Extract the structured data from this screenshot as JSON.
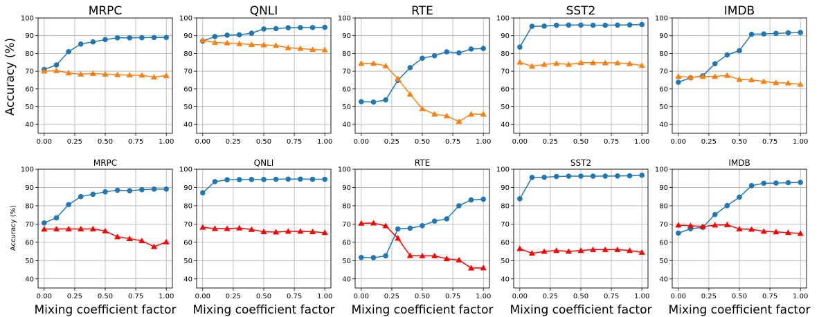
{
  "ylabel_top": "Accuracy (%)",
  "ylabel_bottom": "Accuracy (%)",
  "xlabel": "Mixing coefficient factor",
  "x_ticks": [
    "0.00",
    "0.25",
    "0.50",
    "0.75",
    "1.00"
  ],
  "y_ticks": [
    "40",
    "50",
    "60",
    "70",
    "80",
    "90",
    "100"
  ],
  "colors": {
    "blue": "#1f77b4",
    "orange": "#ff7f0e",
    "red": "#ff0000",
    "grid": "#b0b0b0"
  },
  "chart_data": [
    {
      "type": "line",
      "row": 0,
      "col": 0,
      "title": "MRPC",
      "xlim": [
        0,
        1
      ],
      "ylim": [
        35,
        100
      ],
      "grid": true,
      "x": [
        0,
        0.1,
        0.2,
        0.3,
        0.4,
        0.5,
        0.6,
        0.7,
        0.8,
        0.9,
        1.0
      ],
      "series": [
        {
          "color": "blue",
          "marker": "circle",
          "values": [
            71,
            73.5,
            81,
            85.3,
            86.5,
            87.8,
            88.8,
            88.8,
            88.9,
            89,
            89
          ]
        },
        {
          "color": "orange",
          "marker": "triangle",
          "values": [
            70,
            70.3,
            69,
            68.3,
            68.7,
            68.3,
            68,
            67.8,
            67.7,
            66.7,
            67.5
          ]
        }
      ]
    },
    {
      "type": "line",
      "row": 0,
      "col": 1,
      "title": "QNLI",
      "xlim": [
        0,
        1
      ],
      "ylim": [
        35,
        100
      ],
      "grid": true,
      "x": [
        0,
        0.1,
        0.2,
        0.3,
        0.4,
        0.5,
        0.6,
        0.7,
        0.8,
        0.9,
        1.0
      ],
      "series": [
        {
          "color": "blue",
          "marker": "circle",
          "values": [
            87,
            89.5,
            90.3,
            90.5,
            91.4,
            93.8,
            94,
            94.5,
            94.6,
            94.6,
            94.7
          ]
        },
        {
          "color": "orange",
          "marker": "triangle",
          "values": [
            87.5,
            86.2,
            85.9,
            85.5,
            85,
            84.8,
            84.5,
            83.2,
            82.8,
            82.2,
            82
          ]
        }
      ]
    },
    {
      "type": "line",
      "row": 0,
      "col": 2,
      "title": "RTE",
      "xlim": [
        0,
        1
      ],
      "ylim": [
        35,
        100
      ],
      "grid": true,
      "x": [
        0,
        0.1,
        0.2,
        0.3,
        0.4,
        0.5,
        0.6,
        0.7,
        0.8,
        0.9,
        1.0
      ],
      "series": [
        {
          "color": "blue",
          "marker": "circle",
          "values": [
            52.8,
            52.6,
            53.8,
            64.9,
            72,
            77.3,
            78.7,
            80.9,
            80.3,
            82.5,
            82.8
          ]
        },
        {
          "color": "orange",
          "marker": "triangle",
          "values": [
            74.4,
            74.4,
            73,
            65.7,
            57,
            48.8,
            45.8,
            44.8,
            41.6,
            45.8,
            45.8
          ]
        }
      ]
    },
    {
      "type": "line",
      "row": 0,
      "col": 3,
      "title": "SST2",
      "xlim": [
        0,
        1
      ],
      "ylim": [
        35,
        100
      ],
      "grid": true,
      "x": [
        0,
        0.1,
        0.2,
        0.3,
        0.4,
        0.5,
        0.6,
        0.7,
        0.8,
        0.9,
        1.0
      ],
      "series": [
        {
          "color": "blue",
          "marker": "circle",
          "values": [
            83.6,
            95.3,
            95.4,
            95.9,
            96,
            96,
            95.9,
            95.9,
            96,
            96.1,
            96.3
          ]
        },
        {
          "color": "orange",
          "marker": "triangle",
          "values": [
            75,
            72.8,
            73.8,
            74.4,
            73.8,
            74.8,
            74.8,
            74.7,
            74.7,
            74.2,
            73.2
          ]
        }
      ]
    },
    {
      "type": "line",
      "row": 0,
      "col": 4,
      "title": "IMDB",
      "xlim": [
        0,
        1
      ],
      "ylim": [
        35,
        100
      ],
      "grid": true,
      "x": [
        0,
        0.1,
        0.2,
        0.3,
        0.4,
        0.5,
        0.6,
        0.7,
        0.8,
        0.9,
        1.0
      ],
      "series": [
        {
          "color": "blue",
          "marker": "circle",
          "values": [
            63.8,
            66.3,
            67.4,
            74.2,
            79.2,
            81.6,
            90.8,
            91,
            91.3,
            91.6,
            91.8
          ]
        },
        {
          "color": "orange",
          "marker": "triangle",
          "values": [
            67.1,
            66.5,
            67,
            67,
            67.6,
            65.3,
            65.1,
            64.2,
            63.5,
            63.3,
            62.6
          ]
        }
      ]
    },
    {
      "type": "line",
      "row": 1,
      "col": 0,
      "title": "MRPC",
      "xlim": [
        0,
        1
      ],
      "ylim": [
        35,
        100
      ],
      "grid": true,
      "x": [
        0,
        0.1,
        0.2,
        0.3,
        0.4,
        0.5,
        0.6,
        0.7,
        0.8,
        0.9,
        1.0
      ],
      "series": [
        {
          "color": "blue",
          "marker": "circle",
          "values": [
            70.6,
            73.4,
            80.6,
            85,
            86.3,
            87.6,
            88.5,
            88.2,
            88.8,
            89.1,
            89.1
          ]
        },
        {
          "color": "red",
          "marker": "triangle",
          "values": [
            67.2,
            67.3,
            67.3,
            67.3,
            67.3,
            66.2,
            63,
            62,
            60.8,
            57.6,
            60.2
          ]
        }
      ]
    },
    {
      "type": "line",
      "row": 1,
      "col": 1,
      "title": "QNLI",
      "xlim": [
        0,
        1
      ],
      "ylim": [
        35,
        100
      ],
      "grid": true,
      "x": [
        0,
        0.1,
        0.2,
        0.3,
        0.4,
        0.5,
        0.6,
        0.7,
        0.8,
        0.9,
        1.0
      ],
      "series": [
        {
          "color": "blue",
          "marker": "circle",
          "values": [
            87.1,
            93.2,
            94.2,
            94.3,
            94.4,
            94.4,
            94.5,
            94.6,
            94.6,
            94.5,
            94.5
          ]
        },
        {
          "color": "red",
          "marker": "triangle",
          "values": [
            68.2,
            67.5,
            67.5,
            67.8,
            67,
            65.8,
            65.6,
            66,
            66,
            65.8,
            65.3
          ]
        }
      ]
    },
    {
      "type": "line",
      "row": 1,
      "col": 2,
      "title": "RTE",
      "xlim": [
        0,
        1
      ],
      "ylim": [
        35,
        100
      ],
      "grid": true,
      "x": [
        0,
        0.1,
        0.2,
        0.3,
        0.4,
        0.5,
        0.6,
        0.7,
        0.8,
        0.9,
        1.0
      ],
      "series": [
        {
          "color": "blue",
          "marker": "circle",
          "values": [
            51.7,
            51.6,
            52.6,
            67.3,
            67.7,
            69.1,
            71.6,
            72.8,
            80,
            83.2,
            83.6
          ]
        },
        {
          "color": "red",
          "marker": "triangle",
          "values": [
            70.4,
            70.5,
            69,
            62.2,
            52.7,
            52.6,
            52.6,
            51,
            50.3,
            45.9,
            46
          ]
        }
      ]
    },
    {
      "type": "line",
      "row": 1,
      "col": 3,
      "title": "SST2",
      "xlim": [
        0,
        1
      ],
      "ylim": [
        35,
        100
      ],
      "grid": true,
      "x": [
        0,
        0.1,
        0.2,
        0.3,
        0.4,
        0.5,
        0.6,
        0.7,
        0.8,
        0.9,
        1.0
      ],
      "series": [
        {
          "color": "blue",
          "marker": "circle",
          "values": [
            83.8,
            95.5,
            95.6,
            96,
            96.2,
            96.2,
            96.2,
            96.2,
            96.3,
            96.4,
            96.7
          ]
        },
        {
          "color": "red",
          "marker": "triangle",
          "values": [
            56.5,
            54,
            55,
            55.5,
            55,
            55.5,
            56,
            56,
            56,
            55.5,
            54.5
          ]
        }
      ]
    },
    {
      "type": "line",
      "row": 1,
      "col": 4,
      "title": "IMDB",
      "xlim": [
        0,
        1
      ],
      "ylim": [
        35,
        100
      ],
      "grid": true,
      "x": [
        0,
        0.1,
        0.2,
        0.3,
        0.4,
        0.5,
        0.6,
        0.7,
        0.8,
        0.9,
        1.0
      ],
      "series": [
        {
          "color": "blue",
          "marker": "circle",
          "values": [
            65,
            67.4,
            68.2,
            75.2,
            80.1,
            84.7,
            91,
            92.3,
            92.4,
            92.6,
            92.8
          ]
        },
        {
          "color": "red",
          "marker": "triangle",
          "values": [
            69.4,
            69.1,
            68.6,
            69.4,
            69.6,
            67.3,
            67.1,
            66,
            65.7,
            65.3,
            64.8
          ]
        }
      ]
    }
  ]
}
